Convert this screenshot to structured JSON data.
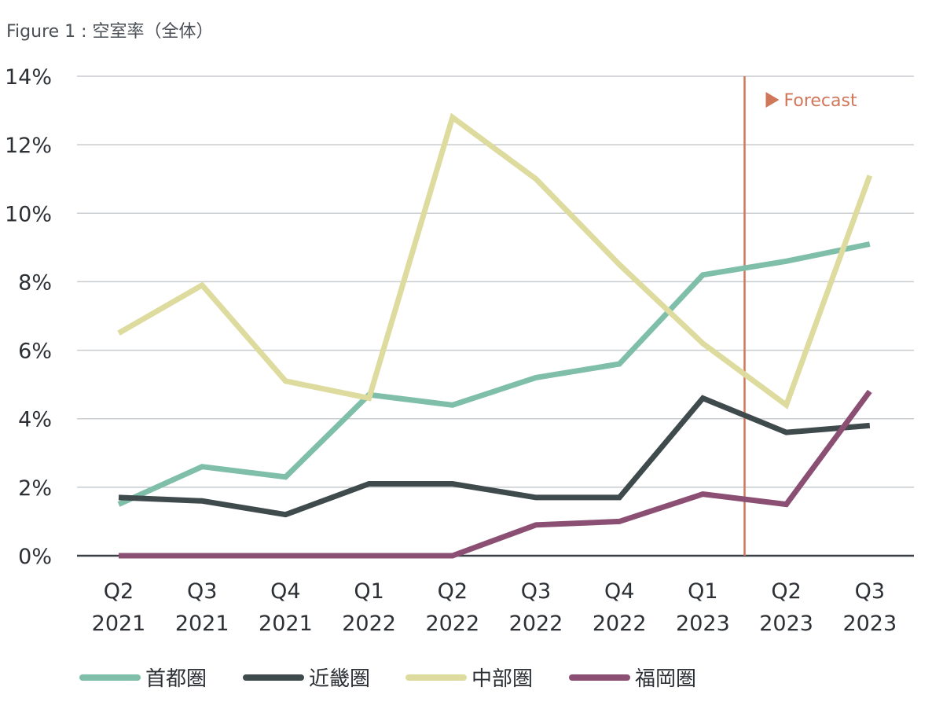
{
  "figure_title": "Figure 1 : 空室率（全体）",
  "colors": {
    "grid": "#c8cccf",
    "axis": "#3a4046",
    "tick_text": "#2c3035",
    "forecast": "#d0775a"
  },
  "chart_data": {
    "type": "line",
    "title": "Figure 1 : 空室率（全体）",
    "xlabel": "",
    "ylabel": "",
    "x": [
      "Q2\n2021",
      "Q3\n2021",
      "Q4\n2021",
      "Q1\n2022",
      "Q2\n2022",
      "Q3\n2022",
      "Q4\n2022",
      "Q1\n2023",
      "Q2\n2023",
      "Q3\n2023"
    ],
    "categories": [
      [
        "Q2",
        "2021"
      ],
      [
        "Q3",
        "2021"
      ],
      [
        "Q4",
        "2021"
      ],
      [
        "Q1",
        "2022"
      ],
      [
        "Q2",
        "2022"
      ],
      [
        "Q3",
        "2022"
      ],
      [
        "Q4",
        "2022"
      ],
      [
        "Q1",
        "2023"
      ],
      [
        "Q2",
        "2023"
      ],
      [
        "Q3",
        "2023"
      ]
    ],
    "yticks": [
      "0%",
      "2%",
      "4%",
      "6%",
      "8%",
      "10%",
      "12%",
      "14%"
    ],
    "ylim": [
      0,
      14
    ],
    "grid": true,
    "legend_position": "bottom",
    "forecast": {
      "label": "Forecast",
      "marker": "▶",
      "start_between": [
        "Q1 2023",
        "Q2 2023"
      ]
    },
    "series": [
      {
        "name": "首都圏",
        "color": "#7fbfaa",
        "values": [
          1.5,
          2.6,
          2.3,
          4.7,
          4.4,
          5.2,
          5.6,
          8.2,
          8.6,
          9.1
        ]
      },
      {
        "name": "近畿圏",
        "color": "#3f4a4d",
        "values": [
          1.7,
          1.6,
          1.2,
          2.1,
          2.1,
          1.7,
          1.7,
          4.6,
          3.6,
          3.8
        ]
      },
      {
        "name": "中部圏",
        "color": "#dedb9e",
        "values": [
          6.5,
          7.9,
          5.1,
          4.6,
          12.8,
          11.0,
          8.5,
          6.2,
          4.4,
          11.1
        ]
      },
      {
        "name": "福岡圏",
        "color": "#8a4f72",
        "values": [
          0.0,
          0.0,
          0.0,
          0.0,
          0.0,
          0.9,
          1.0,
          1.8,
          1.5,
          4.8
        ]
      }
    ]
  }
}
